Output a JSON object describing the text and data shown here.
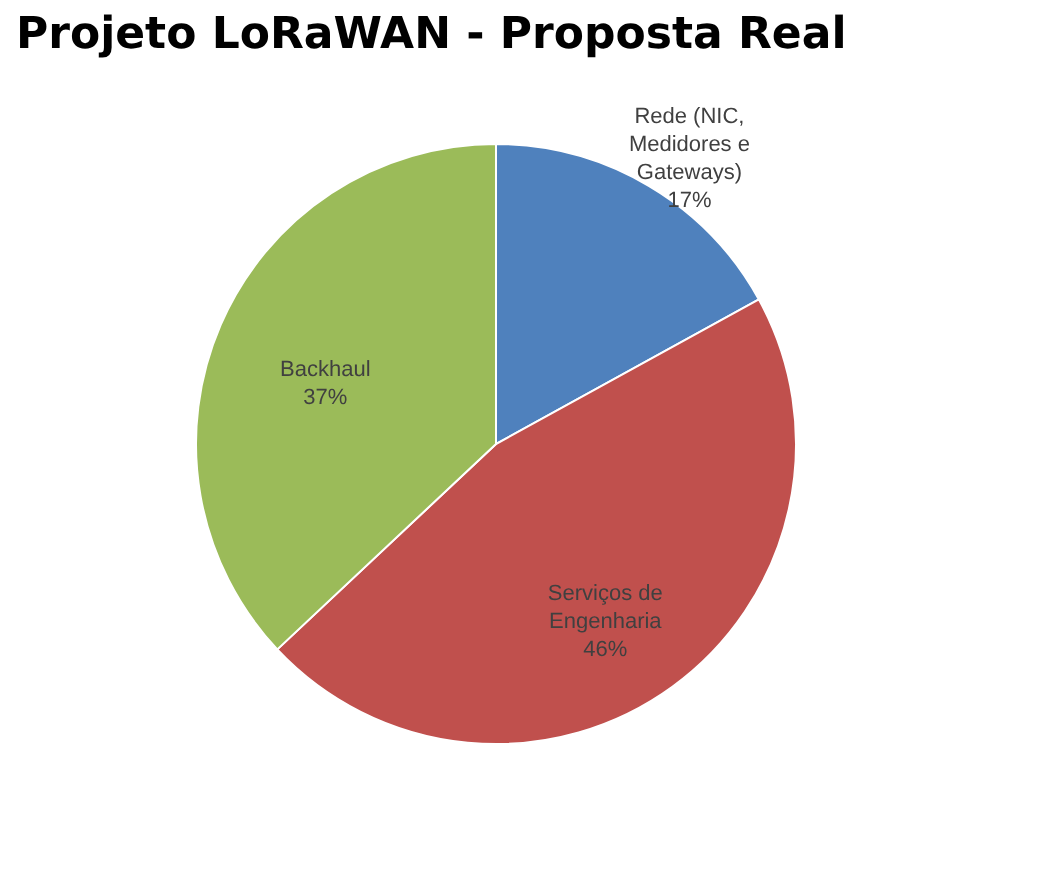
{
  "chart_data": {
    "type": "pie",
    "title": "Projeto LoRaWAN - Proposta Real",
    "categories": [
      "Rede (NIC, Medidores e Gateways)",
      "Serviços de Engenharia",
      "Backhaul"
    ],
    "values": [
      17,
      46,
      37
    ],
    "colors": [
      "#4f81bd",
      "#c0504d",
      "#9bbb59"
    ],
    "value_labels": [
      "17%",
      "46%",
      "37%"
    ]
  }
}
